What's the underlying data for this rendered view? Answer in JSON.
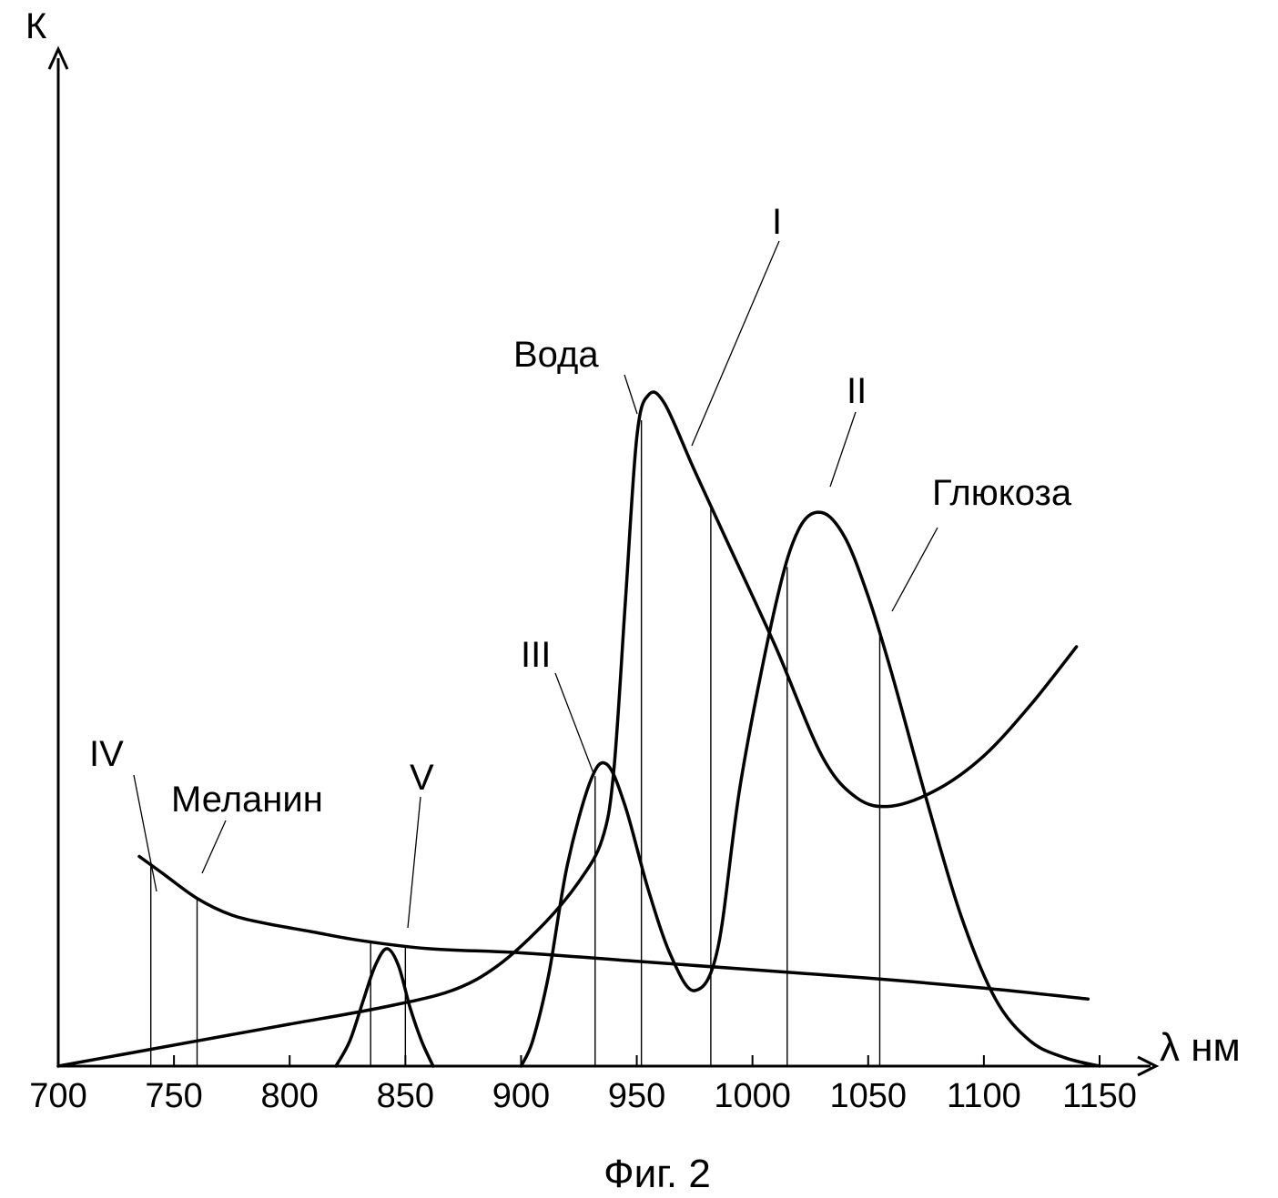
{
  "chart_data": {
    "type": "line",
    "title": "",
    "caption": "Фиг. 2",
    "xlabel": "λ нм",
    "ylabel": "К",
    "xlim": [
      700,
      1150
    ],
    "ylim": [
      0,
      1
    ],
    "x_ticks": [
      700,
      750,
      800,
      850,
      900,
      950,
      1000,
      1050,
      1100,
      1150
    ],
    "grid": false,
    "legend": "none",
    "series": [
      {
        "name": "Вода",
        "x": [
          700,
          760,
          800,
          840,
          870,
          890,
          910,
          925,
          935,
          940,
          945,
          950,
          955,
          962,
          975,
          990,
          1010,
          1030,
          1045,
          1060,
          1080,
          1100,
          1120,
          1140
        ],
        "y": [
          0.0,
          0.03,
          0.05,
          0.07,
          0.09,
          0.12,
          0.17,
          0.22,
          0.27,
          0.35,
          0.55,
          0.75,
          0.8,
          0.79,
          0.71,
          0.62,
          0.5,
          0.37,
          0.32,
          0.31,
          0.33,
          0.37,
          0.43,
          0.5
        ]
      },
      {
        "name": "Глюкоза",
        "x": [
          900,
          905,
          912,
          920,
          930,
          937,
          945,
          955,
          965,
          975,
          985,
          995,
          1010,
          1020,
          1030,
          1040,
          1050,
          1060,
          1075,
          1090,
          1105,
          1120,
          1135,
          1150
        ],
        "y": [
          0.0,
          0.03,
          0.11,
          0.24,
          0.34,
          0.36,
          0.31,
          0.21,
          0.13,
          0.09,
          0.14,
          0.34,
          0.55,
          0.64,
          0.66,
          0.63,
          0.56,
          0.47,
          0.32,
          0.18,
          0.08,
          0.03,
          0.01,
          0.0
        ]
      },
      {
        "name": "Меланин",
        "x": [
          735,
          745,
          760,
          775,
          790,
          810,
          830,
          860,
          900,
          950,
          1000,
          1050,
          1100,
          1145
        ],
        "y": [
          0.25,
          0.23,
          0.2,
          0.18,
          0.17,
          0.16,
          0.15,
          0.14,
          0.135,
          0.125,
          0.115,
          0.105,
          0.093,
          0.08
        ]
      },
      {
        "name": "",
        "x": [
          820,
          826,
          832,
          837,
          842,
          847,
          852,
          857,
          862
        ],
        "y": [
          0.0,
          0.03,
          0.08,
          0.12,
          0.14,
          0.12,
          0.07,
          0.03,
          0.0
        ]
      }
    ],
    "marker_lines": [
      {
        "label": "IV",
        "x": 740
      },
      {
        "label": "",
        "x": 760
      },
      {
        "label": "V",
        "x": 835
      },
      {
        "label": "",
        "x": 850
      },
      {
        "label": "III",
        "x": 932
      },
      {
        "label": "",
        "x": 952
      },
      {
        "label": "I",
        "x": 982
      },
      {
        "label": "",
        "x": 1015
      },
      {
        "label": "II",
        "x": 1055
      }
    ],
    "annotations": [
      "IV",
      "Меланин",
      "V",
      "III",
      "Вода",
      "I",
      "II",
      "Глюкоза"
    ]
  }
}
